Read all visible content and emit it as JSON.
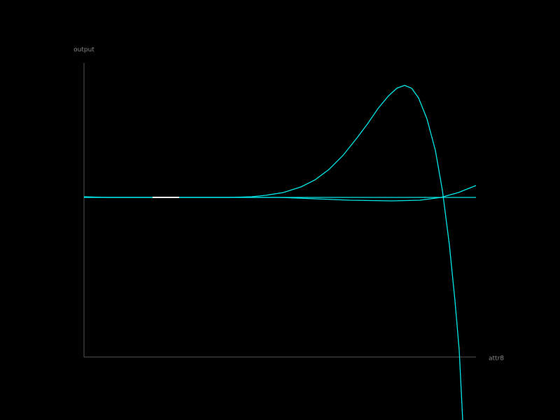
{
  "chart_data": {
    "type": "line",
    "x_label": "attr8",
    "y_label": "output",
    "xlim": [
      0,
      560
    ],
    "ylim": [
      0,
      420
    ],
    "background": "#000000",
    "axis_color": "#555555",
    "series": [
      {
        "color": "#00e5e5",
        "x": [
          0,
          210,
          240,
          260,
          285,
          310,
          330,
          350,
          370,
          390,
          405,
          420,
          435,
          447,
          458,
          468,
          478,
          490,
          502,
          512,
          522,
          530,
          536,
          541
        ],
        "values": [
          228,
          228,
          229,
          231,
          235,
          243,
          253,
          268,
          288,
          313,
          333,
          355,
          373,
          384,
          388,
          384,
          370,
          340,
          295,
          238,
          160,
          80,
          10,
          -90
        ]
      },
      {
        "color": "#00e5e5",
        "x": [
          0,
          30,
          280,
          380,
          440,
          480,
          510,
          535,
          560
        ],
        "values": [
          229,
          228,
          228,
          224,
          223,
          224,
          228,
          235,
          245
        ]
      },
      {
        "color": "#00e5e5",
        "x": [
          0,
          560
        ],
        "values": [
          228,
          228
        ]
      },
      {
        "color": "#ffffff",
        "x": [
          98,
          136
        ],
        "values": [
          228,
          228
        ]
      }
    ]
  }
}
